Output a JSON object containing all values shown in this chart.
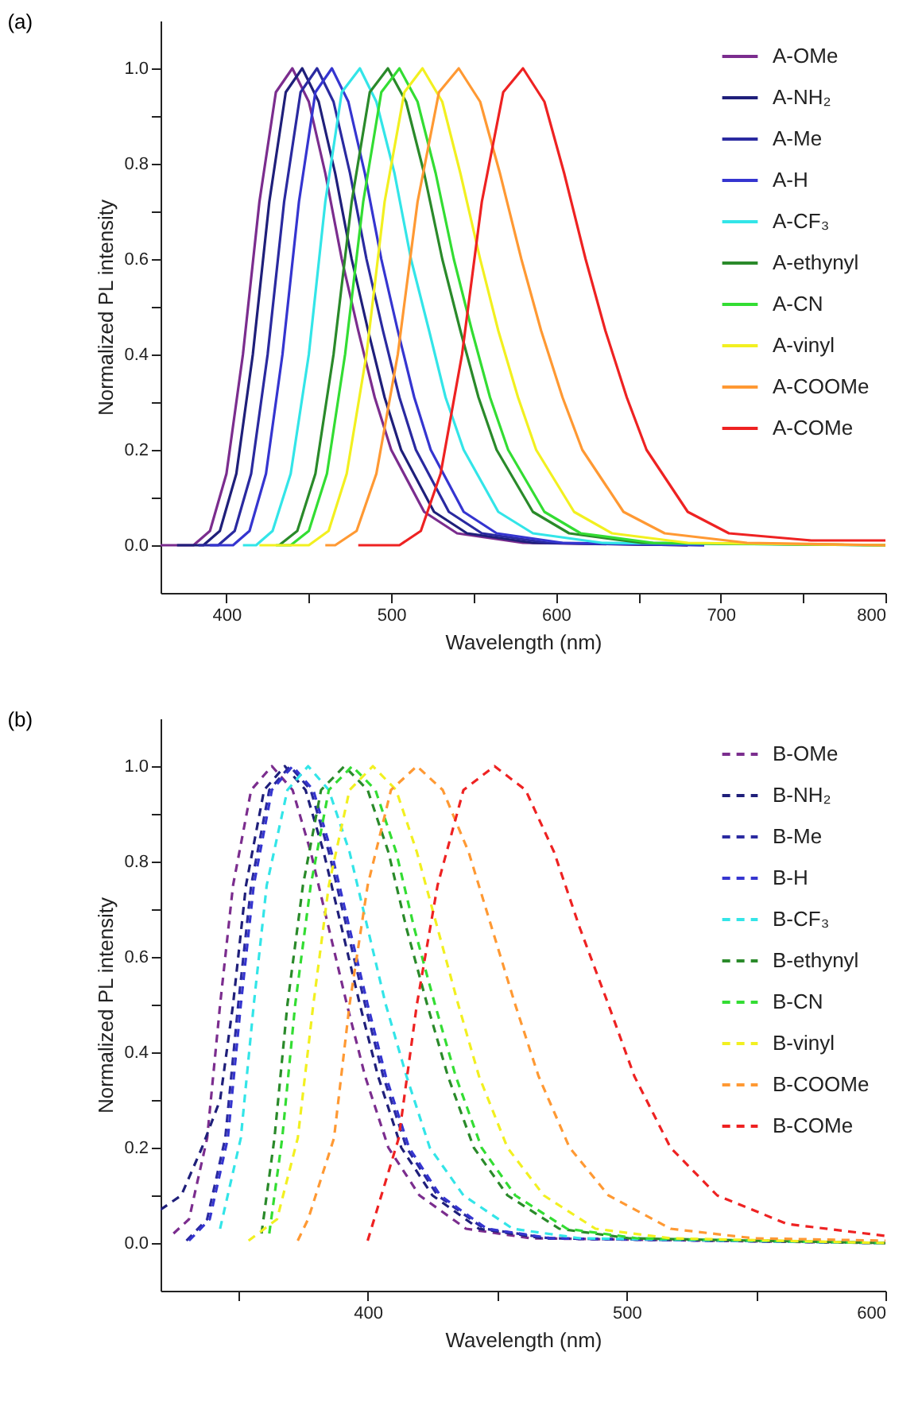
{
  "chart_data": [
    {
      "type": "line",
      "title": "(a)",
      "xlabel": "Wavelength (nm)",
      "ylabel": "Normalized PL intensity",
      "xlim": [
        360,
        800
      ],
      "ylim": [
        -0.1,
        1.1
      ],
      "xticks": [
        400,
        {
          "value": 450,
          "label": null
        },
        500,
        {
          "value": 550,
          "label": null
        },
        600,
        {
          "value": 650,
          "label": null
        },
        700,
        {
          "value": 750,
          "label": null
        },
        800
      ],
      "yticks": [
        {
          "value": 0,
          "label": "0.0"
        },
        {
          "value": 0.1,
          "label": null
        },
        {
          "value": 0.2,
          "label": "0.2"
        },
        {
          "value": 0.3,
          "label": null
        },
        {
          "value": 0.4,
          "label": "0.4"
        },
        {
          "value": 0.5,
          "label": null
        },
        {
          "value": 0.6,
          "label": "0.6"
        },
        {
          "value": 0.7,
          "label": null
        },
        {
          "value": 0.8,
          "label": "0.8"
        },
        {
          "value": 0.9,
          "label": null
        },
        {
          "value": 1.0,
          "label": "1.0"
        }
      ],
      "legend": "top right",
      "line_style": "solid",
      "grid": false,
      "series": [
        {
          "name": "A-OMe",
          "color": "#7b2d8e",
          "x": [
            360,
            380,
            390,
            400,
            410,
            420,
            430,
            440,
            450,
            460,
            470,
            480,
            490,
            500,
            520,
            540,
            580,
            680
          ],
          "values": [
            0,
            0,
            0.03,
            0.15,
            0.4,
            0.72,
            0.95,
            1,
            0.93,
            0.78,
            0.6,
            0.45,
            0.31,
            0.2,
            0.07,
            0.025,
            0.005,
            0
          ]
        },
        {
          "name": "A-NH₂",
          "color": "#1f1f7a",
          "x": [
            370,
            386,
            396,
            406,
            416,
            426,
            436,
            446,
            456,
            466,
            476,
            486,
            496,
            506,
            526,
            546,
            586,
            680
          ],
          "values": [
            0,
            0,
            0.03,
            0.15,
            0.4,
            0.72,
            0.95,
            1,
            0.93,
            0.78,
            0.6,
            0.45,
            0.31,
            0.2,
            0.07,
            0.025,
            0.005,
            0
          ]
        },
        {
          "name": "A-Me",
          "color": "#2a2aa0",
          "x": [
            383,
            395,
            405,
            415,
            425,
            435,
            445,
            455,
            465,
            475,
            485,
            495,
            505,
            515,
            535,
            555,
            595,
            690
          ],
          "values": [
            0,
            0,
            0.03,
            0.15,
            0.4,
            0.72,
            0.95,
            1,
            0.93,
            0.78,
            0.6,
            0.45,
            0.31,
            0.2,
            0.07,
            0.025,
            0.005,
            0
          ]
        },
        {
          "name": "A-H",
          "color": "#3535d0",
          "x": [
            390,
            404,
            414,
            424,
            434,
            444,
            454,
            464,
            474,
            484,
            494,
            504,
            514,
            524,
            544,
            564,
            604,
            690
          ],
          "values": [
            0,
            0,
            0.03,
            0.15,
            0.4,
            0.72,
            0.95,
            1,
            0.93,
            0.78,
            0.6,
            0.45,
            0.31,
            0.2,
            0.07,
            0.025,
            0.005,
            0
          ]
        },
        {
          "name": "A-CF₃",
          "color": "#33e5e8",
          "x": [
            410,
            418,
            428,
            439,
            450,
            460,
            470,
            481,
            491,
            502,
            512,
            523,
            533,
            544,
            565,
            586,
            628,
            800
          ],
          "values": [
            0,
            0,
            0.03,
            0.15,
            0.4,
            0.72,
            0.95,
            1,
            0.93,
            0.78,
            0.6,
            0.45,
            0.31,
            0.2,
            0.07,
            0.025,
            0.005,
            0
          ]
        },
        {
          "name": "A-ethynyl",
          "color": "#2a8a2a",
          "x": [
            432,
            443,
            454,
            465,
            476,
            487,
            498,
            509,
            520,
            531,
            542,
            553,
            564,
            586,
            608,
            652,
            800
          ],
          "values": [
            0,
            0.03,
            0.15,
            0.4,
            0.72,
            0.95,
            1,
            0.93,
            0.78,
            0.6,
            0.45,
            0.31,
            0.2,
            0.07,
            0.025,
            0.005,
            0
          ]
        },
        {
          "name": "A-CN",
          "color": "#33dd33",
          "x": [
            430,
            439,
            450,
            461,
            472,
            483,
            494,
            505,
            516,
            527,
            538,
            549,
            560,
            571,
            593,
            615,
            659,
            800
          ],
          "values": [
            0,
            0,
            0.03,
            0.15,
            0.4,
            0.72,
            0.95,
            1,
            0.93,
            0.78,
            0.6,
            0.45,
            0.31,
            0.2,
            0.07,
            0.025,
            0.005,
            0
          ]
        },
        {
          "name": "A-vinyl",
          "color": "#f2f020",
          "x": [
            420,
            450,
            462,
            473,
            485,
            496,
            508,
            519,
            531,
            542,
            554,
            565,
            577,
            588,
            611,
            634,
            680,
            800
          ],
          "values": [
            0,
            0,
            0.03,
            0.15,
            0.4,
            0.72,
            0.95,
            1,
            0.93,
            0.78,
            0.6,
            0.45,
            0.31,
            0.2,
            0.07,
            0.025,
            0.005,
            0
          ]
        },
        {
          "name": "A-COOMe",
          "color": "#ff9933",
          "x": [
            460,
            466,
            479,
            491,
            504,
            516,
            529,
            541,
            554,
            566,
            579,
            591,
            604,
            616,
            641,
            666,
            716,
            800
          ],
          "values": [
            0,
            0,
            0.03,
            0.15,
            0.4,
            0.72,
            0.95,
            1,
            0.93,
            0.78,
            0.6,
            0.45,
            0.31,
            0.2,
            0.07,
            0.025,
            0.005,
            0
          ]
        },
        {
          "name": "A-COMe",
          "color": "#ee2222",
          "x": [
            480,
            505,
            518,
            530,
            543,
            555,
            568,
            580,
            593,
            605,
            618,
            630,
            643,
            655,
            680,
            705,
            755,
            800
          ],
          "values": [
            0,
            0,
            0.03,
            0.15,
            0.4,
            0.72,
            0.95,
            1,
            0.93,
            0.78,
            0.6,
            0.45,
            0.31,
            0.2,
            0.07,
            0.025,
            0.01,
            0.01
          ]
        }
      ]
    },
    {
      "type": "line",
      "title": "(b)",
      "xlabel": "Wavelength (nm)",
      "ylabel": "Normalized PL intensity",
      "xlim": [
        320,
        600
      ],
      "ylim": [
        -0.1,
        1.1
      ],
      "xticks": [
        {
          "value": 350,
          "label": null
        },
        400,
        {
          "value": 450,
          "label": null
        },
        500,
        {
          "value": 550,
          "label": null
        },
        600
      ],
      "yticks": [
        {
          "value": 0,
          "label": "0.0"
        },
        {
          "value": 0.1,
          "label": null
        },
        {
          "value": 0.2,
          "label": "0.2"
        },
        {
          "value": 0.3,
          "label": null
        },
        {
          "value": 0.4,
          "label": "0.4"
        },
        {
          "value": 0.5,
          "label": null
        },
        {
          "value": 0.6,
          "label": "0.6"
        },
        {
          "value": 0.7,
          "label": null
        },
        {
          "value": 0.8,
          "label": "0.8"
        },
        {
          "value": 0.9,
          "label": null
        },
        {
          "value": 1.0,
          "label": "1.0"
        }
      ],
      "legend": "top right",
      "line_style": "dashed",
      "grid": false,
      "series": [
        {
          "name": "B-OMe",
          "color": "#7b2d8e",
          "x": [
            325,
            331,
            338,
            343,
            348,
            355,
            363,
            371,
            378,
            385,
            392,
            399,
            408,
            420,
            438,
            463,
            600
          ],
          "values": [
            0.02,
            0.05,
            0.22,
            0.5,
            0.75,
            0.95,
            1,
            0.95,
            0.82,
            0.66,
            0.5,
            0.35,
            0.2,
            0.1,
            0.03,
            0.01,
            0
          ]
        },
        {
          "name": "B-NH₂",
          "color": "#1f1f7a",
          "x": [
            320,
            328,
            336,
            343,
            348,
            353,
            360,
            368,
            376,
            383,
            390,
            397,
            404,
            413,
            425,
            443,
            468,
            600
          ],
          "values": [
            0.07,
            0.1,
            0.2,
            0.3,
            0.5,
            0.75,
            0.95,
            1,
            0.95,
            0.82,
            0.66,
            0.5,
            0.35,
            0.2,
            0.1,
            0.03,
            0.01,
            0
          ]
        },
        {
          "name": "B-Me",
          "color": "#2a2aa0",
          "x": [
            330,
            338,
            345,
            350,
            355,
            362,
            370,
            378,
            385,
            392,
            399,
            406,
            415,
            427,
            445,
            470,
            600
          ],
          "values": [
            0.005,
            0.05,
            0.22,
            0.5,
            0.75,
            0.95,
            1,
            0.95,
            0.82,
            0.66,
            0.5,
            0.35,
            0.2,
            0.1,
            0.03,
            0.01,
            0
          ]
        },
        {
          "name": "B-H",
          "color": "#3535d0",
          "x": [
            331,
            339,
            346,
            351,
            356,
            363,
            371,
            379,
            386,
            393,
            400,
            407,
            416,
            428,
            446,
            471,
            600
          ],
          "values": [
            0.005,
            0.05,
            0.22,
            0.5,
            0.75,
            0.95,
            1,
            0.95,
            0.82,
            0.66,
            0.5,
            0.35,
            0.2,
            0.1,
            0.03,
            0.01,
            0
          ]
        },
        {
          "name": "B-CF₃",
          "color": "#33e5e8",
          "x": [
            343,
            351,
            356,
            361,
            369,
            377,
            385,
            393,
            400,
            407,
            415,
            424,
            437,
            456,
            482,
            600
          ],
          "values": [
            0.03,
            0.22,
            0.5,
            0.75,
            0.95,
            1,
            0.95,
            0.82,
            0.66,
            0.5,
            0.35,
            0.2,
            0.1,
            0.03,
            0.01,
            0
          ]
        },
        {
          "name": "B-ethynyl",
          "color": "#2a8a2a",
          "x": [
            359,
            364,
            369,
            375,
            382,
            391,
            400,
            408,
            415,
            423,
            431,
            441,
            454,
            474,
            501,
            600
          ],
          "values": [
            0.02,
            0.22,
            0.5,
            0.75,
            0.95,
            1,
            0.95,
            0.82,
            0.66,
            0.5,
            0.35,
            0.2,
            0.1,
            0.03,
            0.01,
            0
          ]
        },
        {
          "name": "B-CN",
          "color": "#33dd33",
          "x": [
            362,
            367,
            372,
            378,
            385,
            394,
            403,
            411,
            418,
            426,
            434,
            444,
            457,
            477,
            504,
            600
          ],
          "values": [
            0.02,
            0.22,
            0.5,
            0.75,
            0.95,
            1,
            0.95,
            0.82,
            0.66,
            0.5,
            0.35,
            0.2,
            0.1,
            0.03,
            0.01,
            0
          ]
        },
        {
          "name": "B-vinyl",
          "color": "#f2f020",
          "x": [
            354,
            365,
            373,
            379,
            385,
            393,
            402,
            411,
            419,
            427,
            435,
            443,
            454,
            468,
            488,
            517,
            600
          ],
          "values": [
            0.005,
            0.05,
            0.22,
            0.5,
            0.75,
            0.95,
            1,
            0.95,
            0.82,
            0.66,
            0.5,
            0.35,
            0.2,
            0.1,
            0.03,
            0.01,
            0
          ]
        },
        {
          "name": "B-COOMe",
          "color": "#ff9933",
          "x": [
            373,
            377,
            387,
            393,
            400,
            409,
            419,
            429,
            439,
            448,
            457,
            466,
            478,
            493,
            517,
            549,
            600
          ],
          "values": [
            0.005,
            0.05,
            0.22,
            0.5,
            0.75,
            0.95,
            1,
            0.95,
            0.82,
            0.66,
            0.5,
            0.35,
            0.2,
            0.1,
            0.03,
            0.01,
            0.005
          ]
        },
        {
          "name": "B-COMe",
          "color": "#ee2222",
          "x": [
            400,
            412,
            419,
            427,
            437,
            449,
            461,
            472,
            482,
            493,
            503,
            517,
            535,
            562,
            600
          ],
          "values": [
            0.005,
            0.22,
            0.5,
            0.75,
            0.95,
            1,
            0.95,
            0.82,
            0.66,
            0.5,
            0.35,
            0.2,
            0.1,
            0.04,
            0.015
          ]
        }
      ]
    }
  ]
}
